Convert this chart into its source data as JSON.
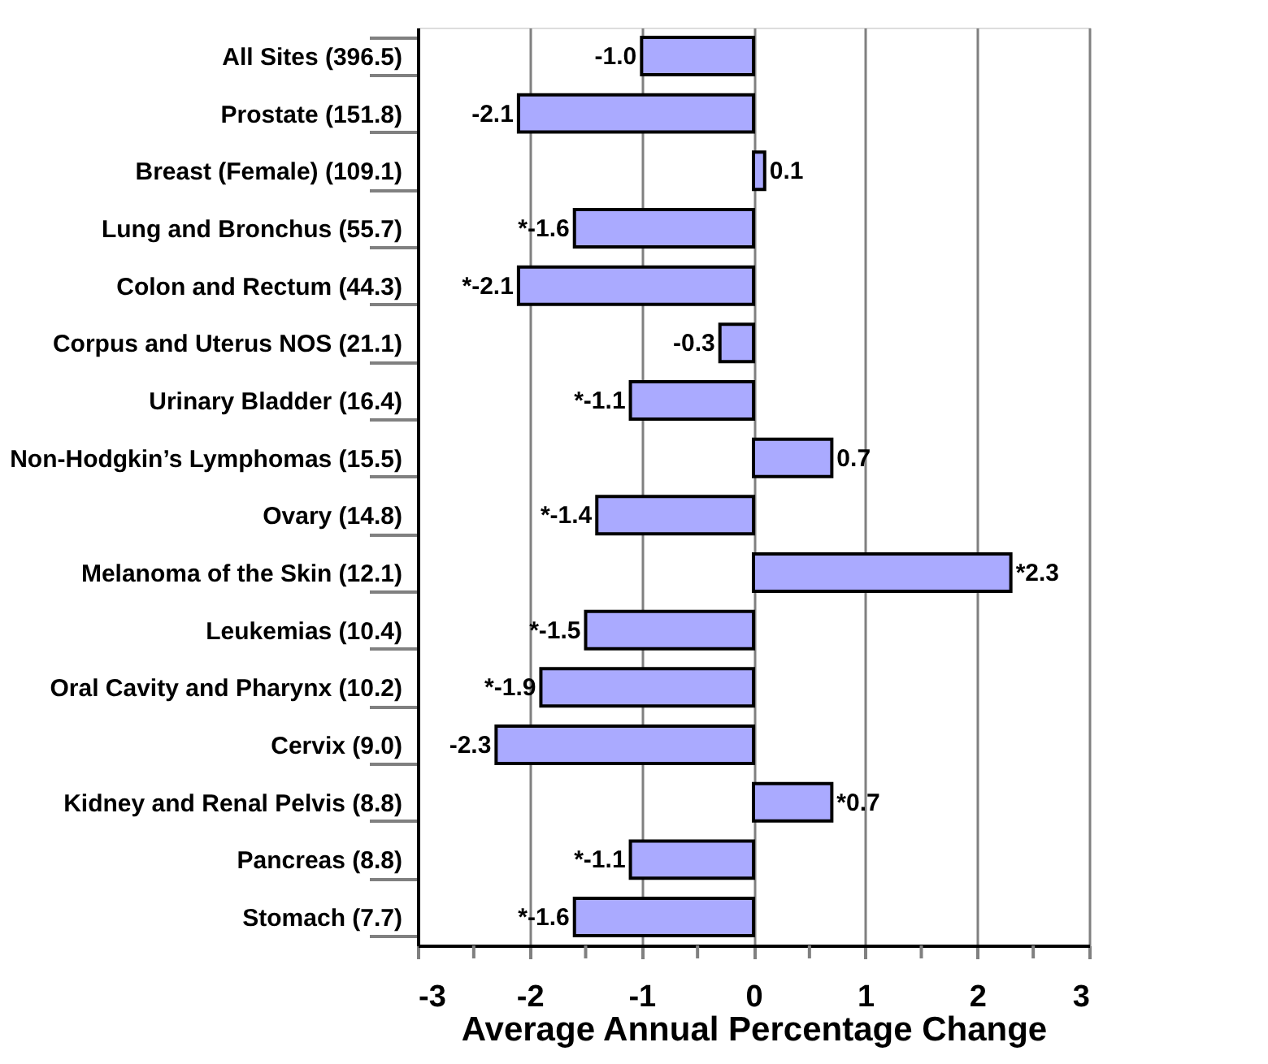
{
  "chart_data": {
    "type": "bar",
    "orientation": "horizontal",
    "xlabel": "Average Annual Percentage Change",
    "categories": [
      "All Sites (396.5)",
      "Prostate (151.8)",
      "Breast (Female) (109.1)",
      "Lung and Bronchus (55.7)",
      "Colon and Rectum (44.3)",
      "Corpus and Uterus NOS (21.1)",
      "Urinary Bladder (16.4)",
      "Non-Hodgkin’s Lymphomas (15.5)",
      "Ovary (14.8)",
      "Melanoma of the Skin (12.1)",
      "Leukemias (10.4)",
      "Oral Cavity and Pharynx (10.2)",
      "Cervix (9.0)",
      "Kidney and Renal Pelvis (8.8)",
      "Pancreas (8.8)",
      "Stomach (7.7)"
    ],
    "values": [
      -1.0,
      -2.1,
      0.1,
      -1.6,
      -2.1,
      -0.3,
      -1.1,
      0.7,
      -1.4,
      2.3,
      -1.5,
      -1.9,
      -2.3,
      0.7,
      -1.1,
      -1.6
    ],
    "value_labels": [
      "-1.0",
      "-2.1",
      "0.1",
      "*-1.6",
      "*-2.1",
      "-0.3",
      "*-1.1",
      "0.7",
      "*-1.4",
      "*2.3",
      "*-1.5",
      "*-1.9",
      "-2.3",
      "*0.7",
      "*-1.1",
      "*-1.6"
    ],
    "color": "#aaaaff",
    "xlim": [
      -3,
      3
    ],
    "xticks": [
      -3,
      {
        "value": -2.5,
        "label": null
      },
      -2,
      {
        "value": -1.5,
        "label": null
      },
      -1,
      {
        "value": -0.5,
        "label": null
      },
      0,
      {
        "value": 0.5,
        "label": null
      },
      1,
      {
        "value": 1.5,
        "label": null
      },
      2,
      {
        "value": 2.5,
        "label": null
      },
      3
    ],
    "grid": "x"
  }
}
